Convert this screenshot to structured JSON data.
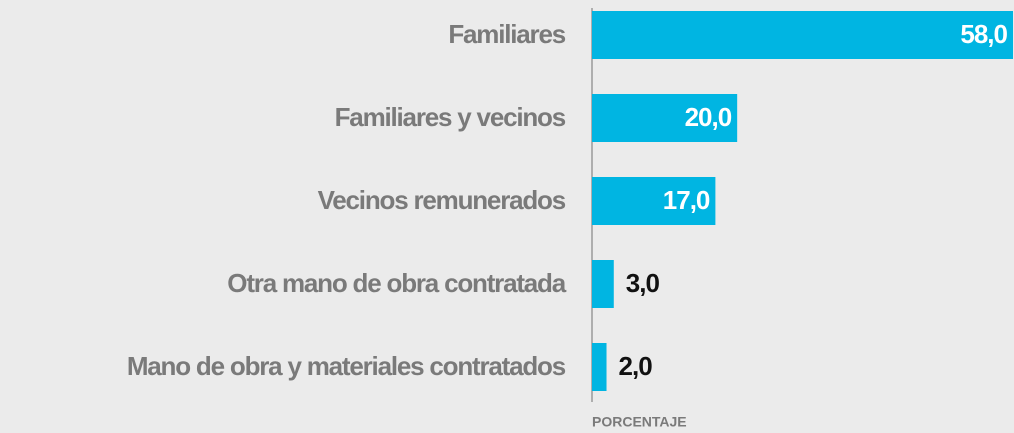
{
  "chart_data": {
    "type": "bar",
    "orientation": "horizontal",
    "categories": [
      "Familiares",
      "Familiares y vecinos",
      "Vecinos remunerados",
      "Otra mano de obra contratada",
      "Mano de obra y materiales contratados"
    ],
    "values": [
      58,
      20,
      17,
      3,
      2
    ],
    "value_labels": [
      "58,0",
      "20,0",
      "17,0",
      "3,0",
      "2,0"
    ],
    "color": "#00b5e2",
    "xlim": [
      0,
      58
    ],
    "xlabel": "PORCENTAJE"
  }
}
